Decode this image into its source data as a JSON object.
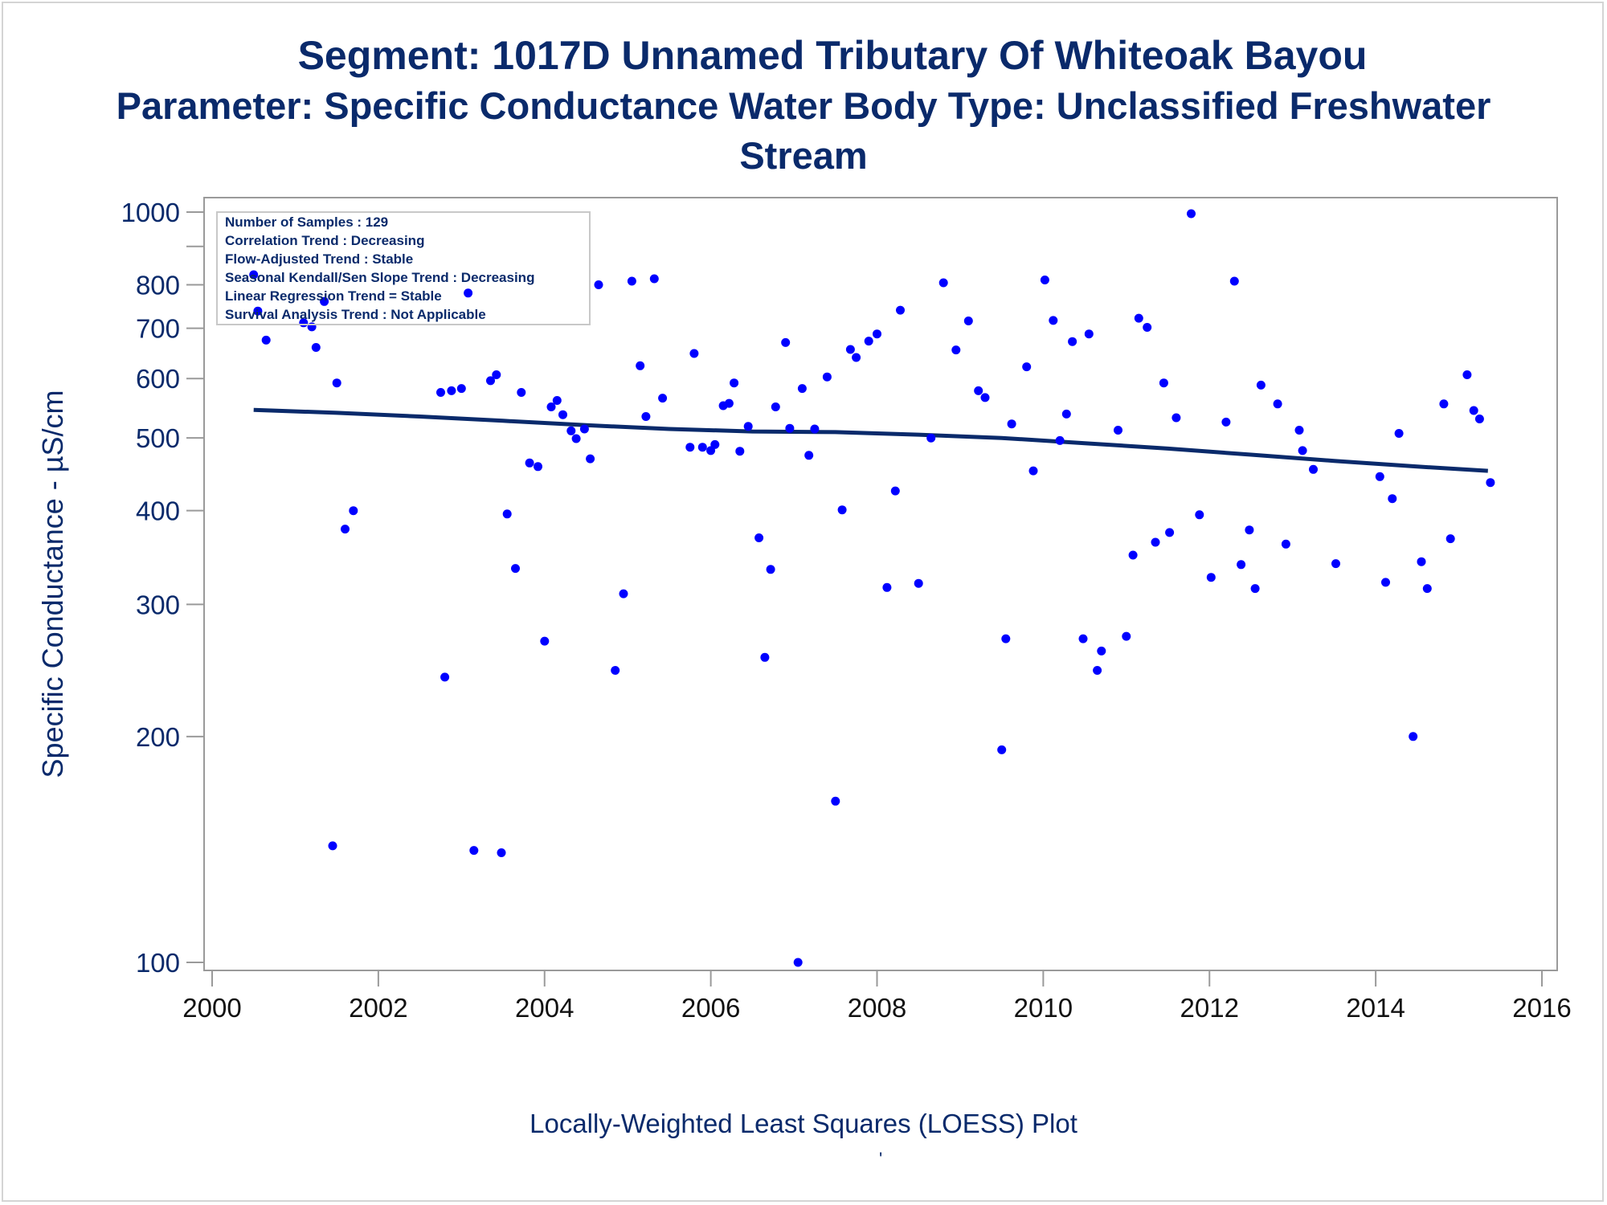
{
  "titles": {
    "line1": "Segment: 1017D  Unnamed Tributary Of Whiteoak Bayou",
    "line2": "Parameter: Specific Conductance   Water Body Type: Unclassified Freshwater",
    "line3": "Stream"
  },
  "footnote": "Locally-Weighted Least Squares (LOESS) Plot",
  "footnote_mark": "'",
  "stats_box": {
    "lines": [
      "Number of Samples : 129",
      "Correlation Trend : Decreasing",
      "Flow-Adjusted Trend : Stable",
      "Seasonal Kendall/Sen Slope Trend : Decreasing",
      "Linear Regression Trend = Stable",
      "Survival Analysis Trend : Not Applicable"
    ]
  },
  "colors": {
    "text": "#0a2a6b",
    "points": "#0000ff",
    "loess": "#0a2a6b",
    "axis": "#9a9a9a"
  },
  "chart_data": {
    "type": "scatter",
    "xlabel": "",
    "ylabel": "Specific Conductance -  µS/cm",
    "x_scale": "linear",
    "y_scale": "log",
    "xlim": [
      2000,
      2016
    ],
    "ylim": [
      100,
      1000
    ],
    "xticks": [
      2000,
      2002,
      2004,
      2006,
      2008,
      2010,
      2012,
      2014,
      2016
    ],
    "yticks": [
      100,
      200,
      300,
      400,
      500,
      600,
      700,
      800,
      1000
    ],
    "grid": false,
    "series": [
      {
        "values_xy": [
          [
            2000.5,
            825
          ],
          [
            2000.55,
            738
          ],
          [
            2000.65,
            675
          ],
          [
            2001.1,
            712
          ],
          [
            2001.2,
            703
          ],
          [
            2001.25,
            660
          ],
          [
            2001.35,
            760
          ],
          [
            2001.45,
            143
          ],
          [
            2001.5,
            592
          ],
          [
            2001.6,
            378
          ],
          [
            2001.7,
            400
          ],
          [
            2002.75,
            575
          ],
          [
            2002.8,
            240
          ],
          [
            2002.88,
            578
          ],
          [
            2003.0,
            582
          ],
          [
            2003.08,
            780
          ],
          [
            2003.15,
            141
          ],
          [
            2003.35,
            596
          ],
          [
            2003.42,
            607
          ],
          [
            2003.48,
            140
          ],
          [
            2003.55,
            396
          ],
          [
            2003.65,
            335
          ],
          [
            2003.72,
            575
          ],
          [
            2003.82,
            463
          ],
          [
            2003.92,
            458
          ],
          [
            2004.0,
            268
          ],
          [
            2004.08,
            550
          ],
          [
            2004.15,
            561
          ],
          [
            2004.22,
            537
          ],
          [
            2004.32,
            511
          ],
          [
            2004.38,
            499
          ],
          [
            2004.48,
            514
          ],
          [
            2004.55,
            469
          ],
          [
            2004.65,
            800
          ],
          [
            2004.85,
            245
          ],
          [
            2004.95,
            310
          ],
          [
            2005.05,
            809
          ],
          [
            2005.15,
            624
          ],
          [
            2005.22,
            534
          ],
          [
            2005.32,
            815
          ],
          [
            2005.42,
            565
          ],
          [
            2005.75,
            486
          ],
          [
            2005.8,
            648
          ],
          [
            2005.9,
            486
          ],
          [
            2006.0,
            481
          ],
          [
            2006.05,
            490
          ],
          [
            2006.15,
            552
          ],
          [
            2006.22,
            556
          ],
          [
            2006.28,
            592
          ],
          [
            2006.35,
            480
          ],
          [
            2006.45,
            518
          ],
          [
            2006.58,
            368
          ],
          [
            2006.65,
            255
          ],
          [
            2006.72,
            334
          ],
          [
            2006.78,
            550
          ],
          [
            2006.9,
            670
          ],
          [
            2006.95,
            515
          ],
          [
            2007.05,
            100
          ],
          [
            2007.1,
            582
          ],
          [
            2007.18,
            474
          ],
          [
            2007.25,
            514
          ],
          [
            2007.4,
            603
          ],
          [
            2007.5,
            164
          ],
          [
            2007.58,
            401
          ],
          [
            2007.68,
            656
          ],
          [
            2007.75,
            640
          ],
          [
            2007.9,
            673
          ],
          [
            2008.0,
            688
          ],
          [
            2008.12,
            316
          ],
          [
            2008.22,
            425
          ],
          [
            2008.28,
            740
          ],
          [
            2008.5,
            320
          ],
          [
            2008.65,
            500
          ],
          [
            2008.8,
            805
          ],
          [
            2008.95,
            655
          ],
          [
            2009.1,
            716
          ],
          [
            2009.22,
            578
          ],
          [
            2009.3,
            566
          ],
          [
            2009.5,
            192
          ],
          [
            2009.55,
            270
          ],
          [
            2009.62,
            522
          ],
          [
            2009.8,
            622
          ],
          [
            2009.88,
            452
          ],
          [
            2010.02,
            812
          ],
          [
            2010.12,
            717
          ],
          [
            2010.2,
            496
          ],
          [
            2010.28,
            538
          ],
          [
            2010.35,
            672
          ],
          [
            2010.48,
            270
          ],
          [
            2010.55,
            688
          ],
          [
            2010.65,
            245
          ],
          [
            2010.7,
            260
          ],
          [
            2010.9,
            512
          ],
          [
            2011.0,
            272
          ],
          [
            2011.08,
            349
          ],
          [
            2011.15,
            722
          ],
          [
            2011.25,
            702
          ],
          [
            2011.35,
            363
          ],
          [
            2011.45,
            592
          ],
          [
            2011.52,
            374
          ],
          [
            2011.6,
            532
          ],
          [
            2011.78,
            995
          ],
          [
            2011.88,
            395
          ],
          [
            2012.02,
            326
          ],
          [
            2012.2,
            525
          ],
          [
            2012.3,
            809
          ],
          [
            2012.38,
            339
          ],
          [
            2012.48,
            377
          ],
          [
            2012.55,
            315
          ],
          [
            2012.62,
            588
          ],
          [
            2012.82,
            555
          ],
          [
            2012.92,
            361
          ],
          [
            2013.08,
            512
          ],
          [
            2013.12,
            481
          ],
          [
            2013.25,
            454
          ],
          [
            2013.52,
            340
          ],
          [
            2014.05,
            444
          ],
          [
            2014.12,
            321
          ],
          [
            2014.2,
            415
          ],
          [
            2014.28,
            507
          ],
          [
            2014.45,
            200
          ],
          [
            2014.55,
            342
          ],
          [
            2014.62,
            315
          ],
          [
            2014.82,
            555
          ],
          [
            2014.9,
            367
          ],
          [
            2015.1,
            607
          ],
          [
            2015.18,
            544
          ],
          [
            2015.25,
            530
          ],
          [
            2015.38,
            436
          ]
        ]
      }
    ],
    "loess_curve": [
      [
        2000.5,
        545
      ],
      [
        2001.5,
        540
      ],
      [
        2002.5,
        534
      ],
      [
        2003.5,
        527
      ],
      [
        2004.5,
        520
      ],
      [
        2005.5,
        514
      ],
      [
        2006.5,
        510
      ],
      [
        2007.5,
        509
      ],
      [
        2008.5,
        505
      ],
      [
        2009.5,
        500
      ],
      [
        2010.5,
        492
      ],
      [
        2011.5,
        484
      ],
      [
        2012.5,
        475
      ],
      [
        2013.5,
        466
      ],
      [
        2014.5,
        458
      ],
      [
        2015.35,
        452
      ]
    ]
  }
}
